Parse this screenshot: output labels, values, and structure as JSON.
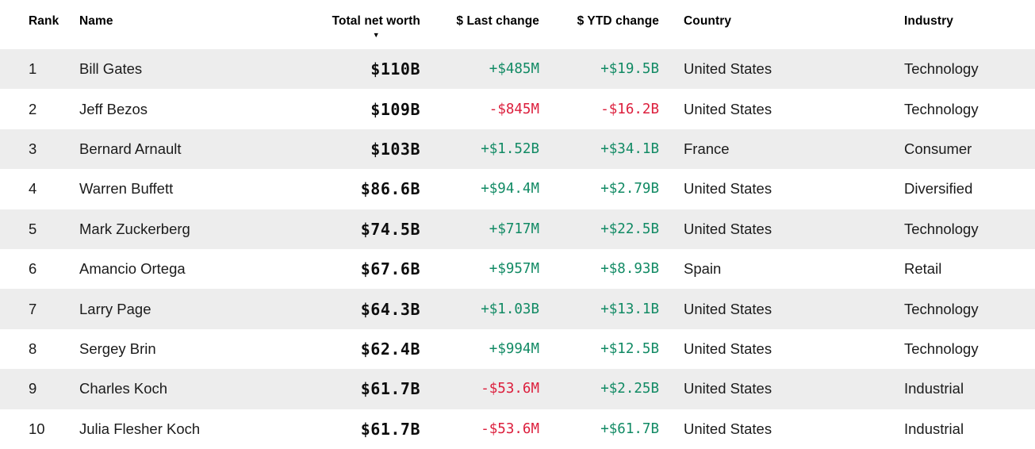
{
  "colors": {
    "positive": "#118a64",
    "negative": "#dc1e3c",
    "row_stripe": "#ededed",
    "header_text": "#000000",
    "body_text": "#1b1b1b"
  },
  "table": {
    "sort_glyph": "▼",
    "sorted_column": "Total net worth",
    "sort_direction": "descending",
    "columns": [
      {
        "id": "rank",
        "label": "Rank",
        "align": "left"
      },
      {
        "id": "name",
        "label": "Name",
        "align": "left"
      },
      {
        "id": "net_worth",
        "label": "Total net worth",
        "align": "right"
      },
      {
        "id": "last_change",
        "label": "$ Last change",
        "align": "right"
      },
      {
        "id": "ytd_change",
        "label": "$ YTD change",
        "align": "right"
      },
      {
        "id": "country",
        "label": "Country",
        "align": "left"
      },
      {
        "id": "industry",
        "label": "Industry",
        "align": "left"
      }
    ],
    "rows": [
      {
        "rank": "1",
        "name": "Bill Gates",
        "net_worth": "$110B",
        "last_change": "+$485M",
        "ytd_change": "+$19.5B",
        "country": "United States",
        "industry": "Technology"
      },
      {
        "rank": "2",
        "name": "Jeff Bezos",
        "net_worth": "$109B",
        "last_change": "-$845M",
        "ytd_change": "-$16.2B",
        "country": "United States",
        "industry": "Technology"
      },
      {
        "rank": "3",
        "name": "Bernard Arnault",
        "net_worth": "$103B",
        "last_change": "+$1.52B",
        "ytd_change": "+$34.1B",
        "country": "France",
        "industry": "Consumer"
      },
      {
        "rank": "4",
        "name": "Warren Buffett",
        "net_worth": "$86.6B",
        "last_change": "+$94.4M",
        "ytd_change": "+$2.79B",
        "country": "United States",
        "industry": "Diversified"
      },
      {
        "rank": "5",
        "name": "Mark Zuckerberg",
        "net_worth": "$74.5B",
        "last_change": "+$717M",
        "ytd_change": "+$22.5B",
        "country": "United States",
        "industry": "Technology"
      },
      {
        "rank": "6",
        "name": "Amancio Ortega",
        "net_worth": "$67.6B",
        "last_change": "+$957M",
        "ytd_change": "+$8.93B",
        "country": "Spain",
        "industry": "Retail"
      },
      {
        "rank": "7",
        "name": "Larry Page",
        "net_worth": "$64.3B",
        "last_change": "+$1.03B",
        "ytd_change": "+$13.1B",
        "country": "United States",
        "industry": "Technology"
      },
      {
        "rank": "8",
        "name": "Sergey Brin",
        "net_worth": "$62.4B",
        "last_change": "+$994M",
        "ytd_change": "+$12.5B",
        "country": "United States",
        "industry": "Technology"
      },
      {
        "rank": "9",
        "name": "Charles Koch",
        "net_worth": "$61.7B",
        "last_change": "-$53.6M",
        "ytd_change": "+$2.25B",
        "country": "United States",
        "industry": "Industrial"
      },
      {
        "rank": "10",
        "name": "Julia Flesher Koch",
        "net_worth": "$61.7B",
        "last_change": "-$53.6M",
        "ytd_change": "+$61.7B",
        "country": "United States",
        "industry": "Industrial"
      }
    ]
  }
}
